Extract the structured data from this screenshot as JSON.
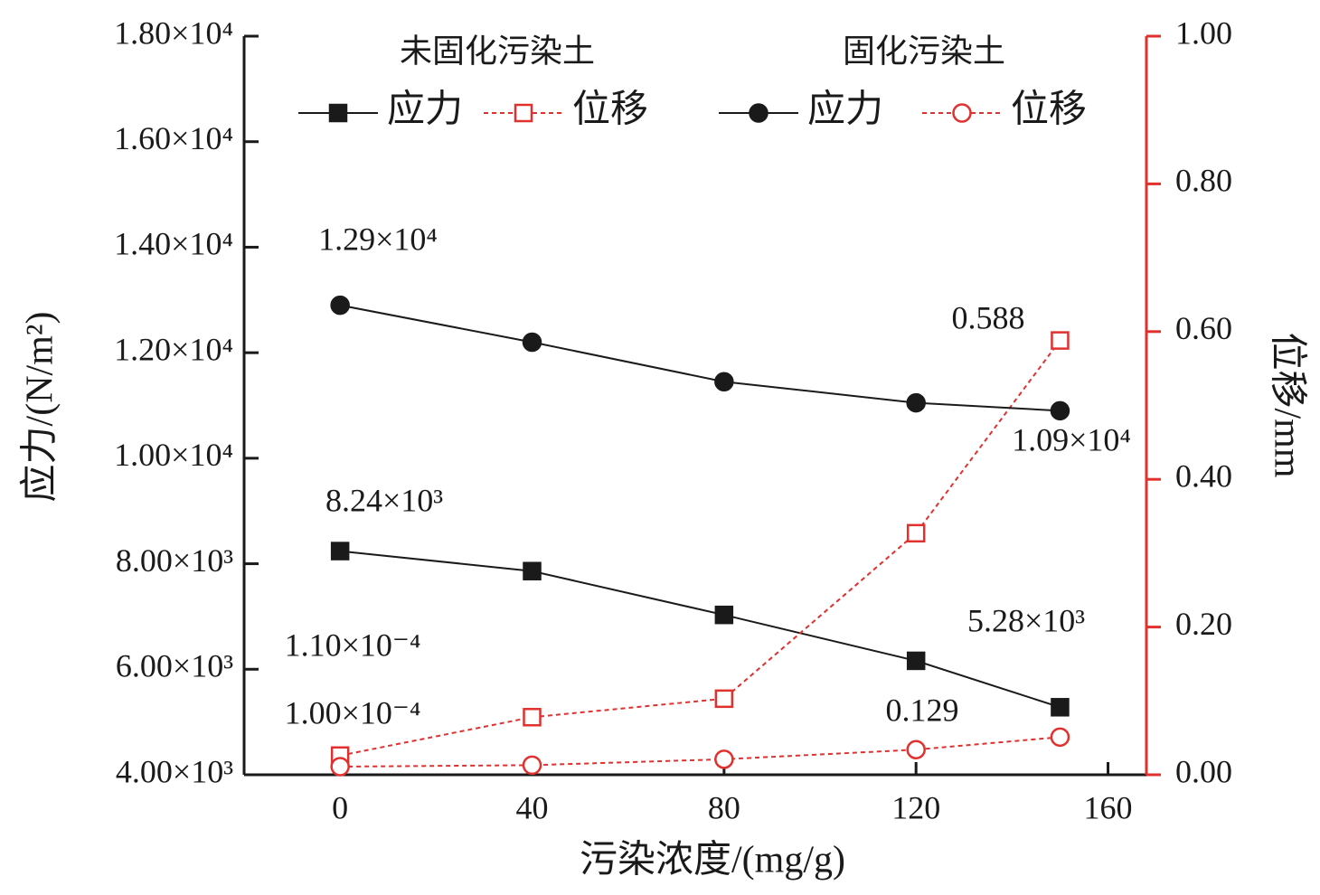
{
  "chart_data": {
    "type": "line",
    "x_label": "污染浓度/(mg/g)",
    "y_label": "应力/(N/m²)",
    "y2_label": "位移/mm",
    "x": [
      0,
      40,
      80,
      120,
      150
    ],
    "xlim": [
      -20,
      168
    ],
    "xticks": [
      0,
      40,
      80,
      120,
      160
    ],
    "ylim": [
      4000,
      18000
    ],
    "yticks": [
      {
        "value": 4000,
        "label": "4.00×10³"
      },
      {
        "value": 6000,
        "label": "6.00×10³"
      },
      {
        "value": 8000,
        "label": "8.00×10³"
      },
      {
        "value": 10000,
        "label": "1.00×10⁴"
      },
      {
        "value": 12000,
        "label": "1.20×10⁴"
      },
      {
        "value": 14000,
        "label": "1.40×10⁴"
      },
      {
        "value": 16000,
        "label": "1.60×10⁴"
      },
      {
        "value": 18000,
        "label": "1.80×10⁴"
      }
    ],
    "y2lim": [
      0,
      1
    ],
    "y2ticks": [
      {
        "value": 0,
        "label": "0.00"
      },
      {
        "value": 0.2,
        "label": "0.20"
      },
      {
        "value": 0.4,
        "label": "0.40"
      },
      {
        "value": 0.6,
        "label": "0.60"
      },
      {
        "value": 0.8,
        "label": "0.80"
      },
      {
        "value": 1,
        "label": "1.00"
      }
    ],
    "y2_color": "#e0312f",
    "legend_groups": [
      "未固化污染土",
      "固化污染土"
    ],
    "series": [
      {
        "name": "应力",
        "group": 0,
        "color": "#1a1a1a",
        "marker": "square",
        "filled": true,
        "dashed": false,
        "values": [
          8240,
          7860,
          7030,
          6160,
          5280
        ],
        "value_labels": [
          "8.24×10³",
          null,
          null,
          null,
          "5.28×10³"
        ]
      },
      {
        "name": "位移",
        "group": 0,
        "color": "#e0312f",
        "marker": "square",
        "filled": false,
        "dashed": true,
        "axis": "y2",
        "values": [
          0.026,
          0.078,
          0.103,
          0.327,
          0.588
        ],
        "value_labels": [
          null,
          null,
          null,
          null,
          "0.588"
        ]
      },
      {
        "name": "应力",
        "group": 1,
        "color": "#1a1a1a",
        "marker": "circle",
        "filled": true,
        "dashed": false,
        "values": [
          12900,
          12200,
          11450,
          11050,
          10900
        ],
        "value_labels": [
          "1.29×10⁴",
          null,
          null,
          null,
          "1.09×10⁴"
        ]
      },
      {
        "name": "位移",
        "group": 1,
        "color": "#e0312f",
        "marker": "circle",
        "filled": false,
        "dashed": true,
        "axis": "y2",
        "values": [
          0.011,
          0.013,
          0.021,
          0.034,
          0.051
        ]
      }
    ],
    "annotations": [
      "1.10×10⁻⁴",
      "1.00×10⁻⁴",
      "0.129"
    ]
  }
}
